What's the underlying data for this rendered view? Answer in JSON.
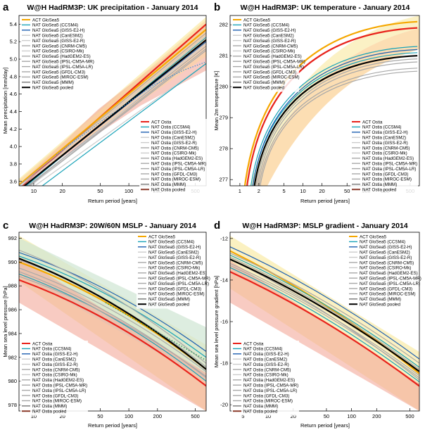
{
  "chart_data": [
    {
      "type": "line",
      "panel_letter": "a",
      "title": "W@H HadRM3P: UK precipitation - January 2014",
      "xlabel": "Return period [years]",
      "ylabel": "Mean precipitation [mm/day]",
      "xscale": "log",
      "xlim": [
        7,
        650
      ],
      "ylim": [
        3.55,
        5.5
      ],
      "xticks": [
        10,
        20,
        50,
        100,
        200,
        500
      ],
      "yticks": [
        3.6,
        3.8,
        4.0,
        4.2,
        4.4,
        4.6,
        4.8,
        5.0,
        5.2,
        5.4
      ],
      "legend_top": [
        "ACT GloSea5",
        "NAT GloSea5 (CCSM4)",
        "NAT GloSea5 (GISS-E2-H)",
        "NAT GloSea5 (CanESM2)",
        "NAT GloSea5 (GISS-E2-R)",
        "NAT GloSea5 (CNRM-CM5)",
        "NAT GloSea5 (CSIRO-Mk)",
        "NAT GloSea5 (HadGEM2-ES)",
        "NAT GloSea5 (IPSL-CM5A-MR)",
        "NAT GloSea5 (IPSL-CM5A-LR)",
        "NAT GloSea5 (GFDL-CM3)",
        "NAT GloSea5 (MIROC-ESM)",
        "NAT GloSea5 (MMM)",
        "NAT GloSea5 pooled"
      ],
      "legend_bottom": [
        "ACT Ostia",
        "NAT Ostia (CCSM4)",
        "NAT Ostia (GISS-E2-H)",
        "NAT Ostia (CanESM2)",
        "NAT Ostia (GISS-E2-R)",
        "NAT Ostia (CNRM-CM5)",
        "NAT Ostia (CSIRO-Mk)",
        "NAT Ostia (HadGEM2-ES)",
        "NAT Ostia (IPSL-CM5A-MR)",
        "NAT Ostia (IPSL-CM5A-LR)",
        "NAT Ostia (GFDL-CM3)",
        "NAT Ostia (MIROC-ESM)",
        "NAT Ostia (MMM)",
        "NAT Ostia pooled"
      ],
      "series": [
        {
          "name": "ACT Ostia",
          "x": [
            7,
            650
          ],
          "y": [
            3.52,
            5.4
          ]
        },
        {
          "name": "ACT GloSea5",
          "x": [
            7,
            650
          ],
          "y": [
            3.56,
            5.34
          ]
        },
        {
          "name": "NAT GloSea5 (CCSM4)",
          "x": [
            7,
            650
          ],
          "y": [
            3.48,
            5.25
          ]
        },
        {
          "name": "NAT Ostia (GISS-E2-H)",
          "x": [
            7,
            650
          ],
          "y": [
            3.5,
            5.2
          ]
        },
        {
          "name": "NAT GloSea5 (IPSL-CM5A-MR)",
          "x": [
            7,
            650
          ],
          "y": [
            3.45,
            5.1
          ]
        },
        {
          "name": "NAT Ostia (CNRM-CM5)",
          "x": [
            7,
            650
          ],
          "y": [
            3.55,
            5.3
          ]
        },
        {
          "name": "NAT Ostia (IPSL-CM5A-LR)",
          "x": [
            7,
            650
          ],
          "y": [
            3.47,
            5.15
          ]
        },
        {
          "name": "NAT Ostia (GFDL-CM3)",
          "x": [
            7,
            650
          ],
          "y": [
            3.46,
            5.12
          ]
        },
        {
          "name": "NAT GloSea5 (GISS-E2-R)",
          "x": [
            7,
            650
          ],
          "y": [
            3.44,
            5.18
          ]
        },
        {
          "name": "NAT GloSea5 (CSIRO-Mk)",
          "x": [
            7,
            650
          ],
          "y": [
            3.53,
            5.27
          ]
        },
        {
          "name": "NAT GloSea5 (CanESM2)",
          "x": [
            7,
            650
          ],
          "y": [
            3.42,
            4.95
          ]
        },
        {
          "name": "NAT Ostia (CCSM4)",
          "x": [
            7,
            650
          ],
          "y": [
            3.35,
            4.95
          ]
        },
        {
          "name": "NAT GloSea5 pooled",
          "x": [
            7,
            650
          ],
          "y": [
            3.5,
            5.22
          ]
        }
      ]
    },
    {
      "type": "line",
      "panel_letter": "b",
      "title": "W@H HadRM3P: UK temperature - January 2014",
      "xlabel": "Return period [years]",
      "ylabel": "Mean 2m temperature [K]",
      "xscale": "log",
      "xlim": [
        0.7,
        700
      ],
      "ylim": [
        276.8,
        282.3
      ],
      "xticks": [
        1,
        2,
        5,
        10,
        20,
        50,
        100,
        200,
        500
      ],
      "yticks": [
        277,
        278,
        279,
        280,
        281,
        282
      ],
      "legend_top": [
        "ACT GloSea5",
        "NAT GloSea5 (CCSM4)",
        "NAT GloSea5 (GISS-E2-H)",
        "NAT GloSea5 (CanESM2)",
        "NAT GloSea5 (GISS-E2-R)",
        "NAT GloSea5 (CNRM-CM5)",
        "NAT GloSea5 (CSIRO-Mk)",
        "NAT GloSea5 (HadGEM2-ES)",
        "NAT GloSea5 (IPSL-CM5A-MR)",
        "NAT GloSea5 (IPSL-CM5A-LR)",
        "NAT GloSea5 (GFDL-CM3)",
        "NAT GloSea5 (MIROC-ESM)",
        "NAT GloSea5 (MMM)",
        "NAT GloSea5 pooled"
      ],
      "legend_bottom": [
        "ACT Ostia",
        "NAT Ostia (CCSM4)",
        "NAT Ostia (GISS-E2-H)",
        "NAT Ostia (CanESM2)",
        "NAT Ostia (GISS-E2-R)",
        "NAT Ostia (CNRM-CM5)",
        "NAT Ostia (CSIRO-Mk)",
        "NAT Ostia (HadGEM2-ES)",
        "NAT Ostia (IPSL-CM5A-MR)",
        "NAT Ostia (IPSL-CM5A-LR)",
        "NAT Ostia (GFDL-CM3)",
        "NAT Ostia (MIROC-ESM)",
        "NAT Ostia (MMM)",
        "NAT Ostia pooled"
      ],
      "series": [
        {
          "name": "ACT GloSea5",
          "x": [
            1.2,
            650
          ],
          "y": [
            276.8,
            282.1
          ]
        },
        {
          "name": "ACT Ostia",
          "x": [
            1.3,
            650
          ],
          "y": [
            276.8,
            281.9
          ]
        },
        {
          "name": "NAT GloSea5 (CCSM4)",
          "x": [
            1.5,
            650
          ],
          "y": [
            276.8,
            281.3
          ]
        },
        {
          "name": "NAT Ostia (CCSM4)",
          "x": [
            1.6,
            650
          ],
          "y": [
            276.8,
            281.1
          ]
        },
        {
          "name": "NAT GloSea5 (GISS-E2-H)",
          "x": [
            1.6,
            650
          ],
          "y": [
            276.8,
            281.2
          ]
        },
        {
          "name": "NAT Ostia (CNRM-CM5)",
          "x": [
            1.8,
            650
          ],
          "y": [
            276.8,
            280.9
          ]
        },
        {
          "name": "NAT GloSea5 (HadGEM2-ES)",
          "x": [
            1.7,
            650
          ],
          "y": [
            276.8,
            281.0
          ]
        },
        {
          "name": "NAT Ostia (IPSL-CM5A-LR)",
          "x": [
            2.0,
            650
          ],
          "y": [
            276.8,
            280.6
          ]
        },
        {
          "name": "NAT GloSea5 (MIROC-ESM)",
          "x": [
            1.9,
            650
          ],
          "y": [
            276.8,
            280.8
          ]
        },
        {
          "name": "NAT Ostia (GFDL-CM3)",
          "x": [
            2.1,
            650
          ],
          "y": [
            276.8,
            280.5
          ]
        },
        {
          "name": "NAT GloSea5 pooled",
          "x": [
            1.7,
            650
          ],
          "y": [
            276.8,
            281.0
          ]
        }
      ]
    },
    {
      "type": "line",
      "panel_letter": "c",
      "title": "W@H HadRM3P: 20W/60N MSLP - January 2014",
      "xlabel": "Return period [years]",
      "ylabel": "Mean sea level pressure [hPa]",
      "xscale": "log",
      "xlim": [
        7,
        650
      ],
      "ylim": [
        977.5,
        992.5
      ],
      "xticks": [
        10,
        20,
        50,
        100,
        200,
        500
      ],
      "yticks": [
        978,
        980,
        982,
        984,
        986,
        988,
        990,
        992
      ],
      "legend_top": [
        "ACT GloSea5",
        "NAT GloSea5 (CCSM4)",
        "NAT GloSea5 (GISS-E2-H)",
        "NAT GloSea5 (CanESM2)",
        "NAT GloSea5 (GISS-E2-R)",
        "NAT GloSea5 (CNRM-CM5)",
        "NAT GloSea5 (CSIRO-Mk)",
        "NAT GloSea5 (HadGEM2-ES)",
        "NAT GloSea5 (IPSL-CM5A-MR)",
        "NAT GloSea5 (IPSL-CM5A-LR)",
        "NAT GloSea5 (GFDL-CM3)",
        "NAT GloSea5 (MIROC-ESM)",
        "NAT GloSea5 (MMM)",
        "NAT GloSea5 pooled"
      ],
      "legend_bottom": [
        "ACT Ostia",
        "NAT Ostia (CCSM4)",
        "NAT Ostia (GISS-E2-H)",
        "NAT Ostia (CanESM2)",
        "NAT Ostia (GISS-E2-R)",
        "NAT Ostia (CNRM-CM5)",
        "NAT Ostia (CSIRO-Mk)",
        "NAT Ostia (HadGEM2-ES)",
        "NAT Ostia (IPSL-CM5A-MR)",
        "NAT Ostia (IPSL-CM5A-LR)",
        "NAT Ostia (GFDL-CM3)",
        "NAT Ostia (MIROC-ESM)",
        "NAT Ostia (MMM)",
        "NAT Ostia pooled"
      ],
      "series": [
        {
          "name": "ACT Ostia",
          "x": [
            7,
            650
          ],
          "y": [
            988.5,
            979.6
          ]
        },
        {
          "name": "ACT GloSea5",
          "x": [
            7,
            650
          ],
          "y": [
            990.0,
            981.0
          ]
        },
        {
          "name": "NAT GloSea5 (CCSM4)",
          "x": [
            7,
            650
          ],
          "y": [
            990.5,
            982.0
          ]
        },
        {
          "name": "NAT Ostia (CCSM4)",
          "x": [
            7,
            650
          ],
          "y": [
            989.0,
            980.0
          ]
        },
        {
          "name": "NAT GloSea5 (GISS-E2-H)",
          "x": [
            7,
            650
          ],
          "y": [
            990.8,
            982.5
          ]
        },
        {
          "name": "NAT Ostia (CNRM-CM5)",
          "x": [
            7,
            650
          ],
          "y": [
            989.5,
            980.8
          ]
        },
        {
          "name": "NAT GloSea5 (HadGEM2-ES)",
          "x": [
            7,
            650
          ],
          "y": [
            991.0,
            981.5
          ]
        },
        {
          "name": "NAT Ostia (IPSL-CM5A-MR)",
          "x": [
            7,
            650
          ],
          "y": [
            989.2,
            980.3
          ]
        },
        {
          "name": "NAT GloSea5 (MIROC-ESM)",
          "x": [
            7,
            650
          ],
          "y": [
            990.2,
            981.2
          ]
        },
        {
          "name": "NAT Ostia (GFDL-CM3)",
          "x": [
            7,
            650
          ],
          "y": [
            988.8,
            980.4
          ]
        },
        {
          "name": "NAT GloSea5 pooled",
          "x": [
            7,
            650
          ],
          "y": [
            990.3,
            981.0
          ]
        }
      ]
    },
    {
      "type": "line",
      "panel_letter": "d",
      "title": "W@H HadRM3P: MSLP gradient  - January 2014",
      "xlabel": "Return period [years]",
      "ylabel": "Mean sea level pressure gradient [hPa]",
      "xscale": "log",
      "xlim": [
        3.5,
        650
      ],
      "ylim": [
        -20.3,
        -11.7
      ],
      "xticks": [
        5,
        10,
        20,
        50,
        100,
        200,
        500
      ],
      "yticks": [
        -12,
        -14,
        -16,
        -18,
        -20
      ],
      "legend_top": [
        "ACT GloSea5",
        "NAT GloSea5 (CCSM4)",
        "NAT GloSea5 (GISS-E2-H)",
        "NAT GloSea5 (CanESM2)",
        "NAT GloSea5 (GISS-E2-R)",
        "NAT GloSea5 (CNRM-CM5)",
        "NAT GloSea5 (CSIRO-Mk)",
        "NAT GloSea5 (HadGEM2-ES)",
        "NAT GloSea5 (IPSL-CM5A-MR)",
        "NAT GloSea5 (IPSL-CM5A-LR)",
        "NAT GloSea5 (GFDL-CM3)",
        "NAT GloSea5 (MIROC-ESM)",
        "NAT GloSea5 (MMM)",
        "NAT GloSea5 pooled"
      ],
      "legend_bottom": [
        "ACT Ostia",
        "NAT Ostia (CCSM4)",
        "NAT Ostia (GISS-E2-H)",
        "NAT Ostia (CanESM2)",
        "NAT Ostia (GISS-E2-R)",
        "NAT Ostia (CNRM-CM5)",
        "NAT Ostia (CSIRO-Mk)",
        "NAT Ostia (HadGEM2-ES)",
        "NAT Ostia (IPSL-CM5A-MR)",
        "NAT Ostia (IPSL-CM5A-LR)",
        "NAT Ostia (GFDL-CM3)",
        "NAT Ostia (MIROC-ESM)",
        "NAT Ostia (MMM)",
        "NAT Ostia pooled"
      ],
      "series": [
        {
          "name": "ACT Ostia",
          "x": [
            3.5,
            650
          ],
          "y": [
            -13.6,
            -19.1
          ]
        },
        {
          "name": "ACT GloSea5",
          "x": [
            3.5,
            650
          ],
          "y": [
            -12.6,
            -18.5
          ]
        },
        {
          "name": "NAT GloSea5 (CCSM4)",
          "x": [
            3.5,
            650
          ],
          "y": [
            -12.8,
            -18.2
          ]
        },
        {
          "name": "NAT Ostia (CCSM4)",
          "x": [
            3.5,
            650
          ],
          "y": [
            -13.4,
            -18.9
          ]
        },
        {
          "name": "NAT GloSea5 (GISS-E2-H)",
          "x": [
            3.5,
            650
          ],
          "y": [
            -12.4,
            -17.8
          ]
        },
        {
          "name": "NAT Ostia (CNRM-CM5)",
          "x": [
            3.5,
            650
          ],
          "y": [
            -13.2,
            -18.6
          ]
        },
        {
          "name": "NAT GloSea5 (HadGEM2-ES)",
          "x": [
            3.5,
            650
          ],
          "y": [
            -12.7,
            -18.0
          ]
        },
        {
          "name": "NAT Ostia (IPSL-CM5A-MR)",
          "x": [
            3.5,
            650
          ],
          "y": [
            -13.3,
            -18.7
          ]
        },
        {
          "name": "NAT GloSea5 (MIROC-ESM)",
          "x": [
            3.5,
            650
          ],
          "y": [
            -12.9,
            -18.3
          ]
        },
        {
          "name": "NAT Ostia (GFDL-CM3)",
          "x": [
            3.5,
            650
          ],
          "y": [
            -13.0,
            -18.8
          ]
        },
        {
          "name": "NAT GloSea5 pooled",
          "x": [
            3.5,
            650
          ],
          "y": [
            -13.0,
            -18.4
          ]
        }
      ]
    }
  ],
  "colors": {
    "act_glosea5": "#f5a700",
    "act_ostia": "#e8231c",
    "ccsm4": "#1aa3b8",
    "giss_e2_h": "#1d5fb0",
    "pooled": "#000000",
    "ostia_pooled": "#8b3a2a",
    "gray_dark": "#777777",
    "gray_mid": "#a8a8a8",
    "gray_light": "#cccccc",
    "band_red": "#f4a89a",
    "band_orange": "#fbd6a0",
    "band_yellow": "#faeeb6",
    "band_green": "#cfe6d3"
  }
}
